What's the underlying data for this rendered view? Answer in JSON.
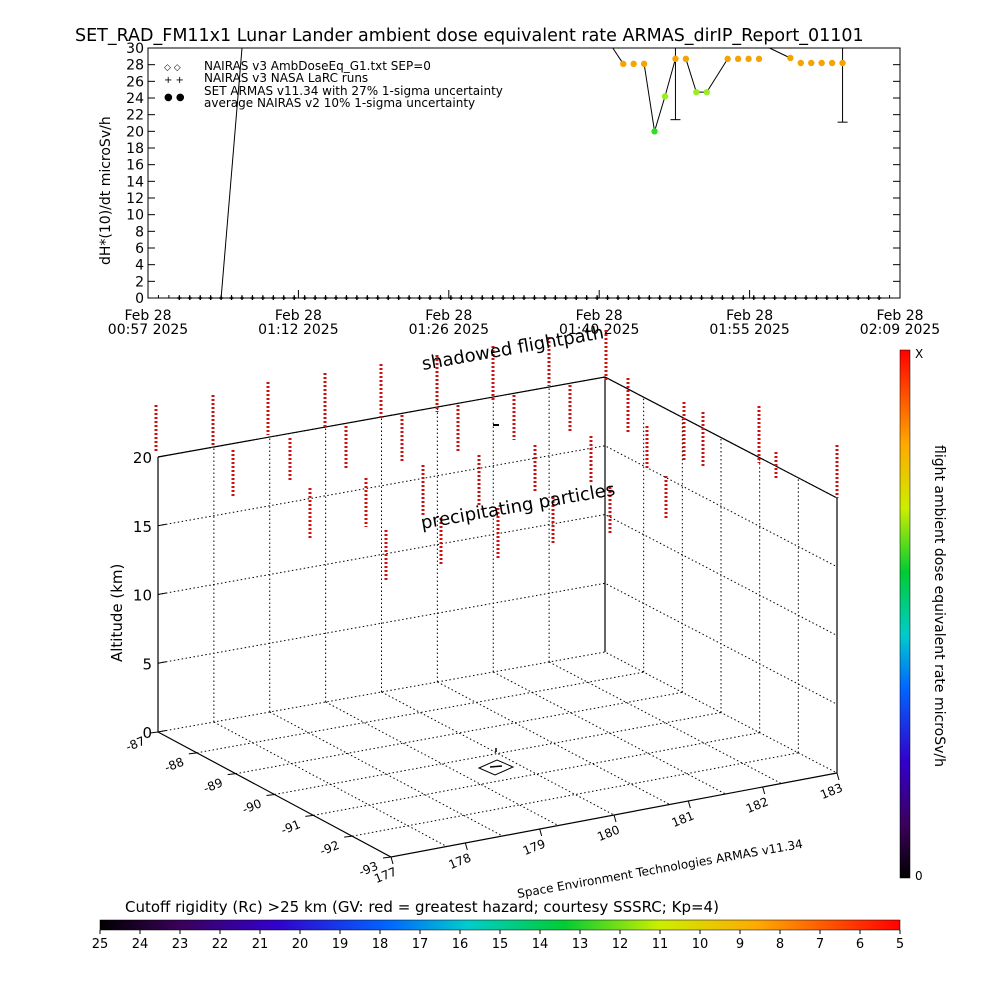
{
  "title": "SET_RAD_FM11x1  Lunar Lander ambient dose equivalent rate ARMAS_dirIP_Report_01101",
  "chart_data": [
    {
      "type": "scatter",
      "ylabel": "dH*(10)/dt microSv/h",
      "ylim": [
        0,
        30
      ],
      "yticks": [
        0,
        2,
        4,
        6,
        8,
        10,
        12,
        14,
        16,
        18,
        20,
        22,
        24,
        26,
        28,
        30
      ],
      "xtick_labels": [
        {
          "line1": "Feb 28",
          "line2": "00:57 2025"
        },
        {
          "line1": "Feb 28",
          "line2": "01:12 2025"
        },
        {
          "line1": "Feb 28",
          "line2": "01:26 2025"
        },
        {
          "line1": "Feb 28",
          "line2": "01:40 2025"
        },
        {
          "line1": "Feb 28",
          "line2": "01:55 2025"
        },
        {
          "line1": "Feb 28",
          "line2": "02:09 2025"
        }
      ],
      "xrange_minutes": [
        0,
        72
      ],
      "legend": [
        {
          "marker": "◇ ◇",
          "label": "NAIRAS v3 AmbDoseEq_G1.txt SEP=0"
        },
        {
          "marker": "+ +",
          "label": "NAIRAS v3 NASA LaRC runs"
        },
        {
          "marker": "● ●",
          "label": "SET ARMAS v11.34 with 27% 1-sigma uncertainty",
          "color": "#0033cc"
        },
        {
          "marker": "",
          "label": "average NAIRAS v2 10% 1-sigma uncertainty"
        }
      ],
      "series": [
        {
          "marker": "orange",
          "t_minutes": [
            45.5,
            46.5,
            47.5,
            50.5,
            51.5,
            55.5,
            56.5,
            57.5,
            58.5,
            61.5,
            62.5,
            63.5,
            64.5,
            65.5,
            66.5
          ],
          "values": [
            28.1,
            28.1,
            28.1,
            28.7,
            28.7,
            28.7,
            28.7,
            28.7,
            28.7,
            28.8,
            28.2,
            28.2,
            28.2,
            28.2,
            28.2
          ]
        },
        {
          "marker": "green",
          "t_minutes": [
            48.5
          ],
          "values": [
            20.0
          ]
        },
        {
          "marker": "light-green",
          "t_minutes": [
            49.5,
            52.5,
            53.5
          ],
          "values": [
            24.2,
            24.7,
            24.7
          ]
        },
        {
          "marker": "black-plus",
          "t_minutes": [
            3,
            4,
            5,
            6,
            7,
            8,
            9,
            10,
            11,
            12,
            13,
            14,
            15,
            16,
            17,
            18,
            19,
            20,
            21,
            22,
            23,
            24,
            25,
            26,
            27,
            28,
            29,
            30,
            31,
            32,
            33,
            34,
            35,
            36,
            37,
            38,
            39,
            40,
            41,
            42,
            43,
            44,
            45,
            46,
            47,
            48,
            49,
            50,
            51,
            52,
            53,
            54,
            55,
            56,
            57,
            58,
            59,
            60,
            61,
            62,
            63,
            64,
            65,
            66,
            67,
            68,
            69,
            70
          ],
          "values": [
            0,
            0,
            0,
            0,
            0,
            0,
            0,
            0,
            0,
            0,
            0,
            0,
            0,
            0,
            0,
            0,
            0,
            0,
            0,
            0,
            0,
            0,
            0,
            0,
            0,
            0,
            0,
            0,
            0,
            0,
            0,
            0,
            0,
            0,
            0,
            0,
            0,
            0,
            0,
            0,
            0,
            0,
            0,
            0,
            0,
            0,
            0,
            0,
            0,
            0,
            0,
            0,
            0,
            0,
            0,
            0,
            0,
            0,
            0,
            0,
            0,
            0,
            0,
            0,
            0,
            0,
            0,
            0
          ]
        }
      ],
      "error_bars": [
        {
          "t_minutes": 50.5,
          "low": 21.4,
          "high": 30
        },
        {
          "t_minutes": 66.5,
          "low": 21.1,
          "high": 30
        }
      ]
    },
    {
      "type": "scatter3d",
      "annotation_top": "shadowed flightpath",
      "annotation_mid": "precipitating particles",
      "zlabel": "Altitude (km)",
      "zlim": [
        0,
        20
      ],
      "zticks": [
        0,
        5,
        10,
        15,
        20
      ],
      "lat_ticks": [
        "-87",
        "-88",
        "-89",
        "-90",
        "-91",
        "-92",
        "-93"
      ],
      "lon_ticks": [
        "177",
        "178",
        "179",
        "180",
        "181",
        "182",
        "183"
      ],
      "colorbar_label": "flight ambient dose equivalent rate microSv/h",
      "colorbar_top": "X",
      "colorbar_bottom": "0",
      "credit": "Space Environment Technologies ARMAS v11.34",
      "cutoff_label": "Cutoff rigidity (Rc) >25 km (GV: red = greatest hazard; courtesy SSSRC; Kp=4)",
      "cutoff_ticks": [
        "25",
        "24",
        "23",
        "22",
        "21",
        "20",
        "19",
        "18",
        "17",
        "16",
        "15",
        "14",
        "13",
        "12",
        "11",
        "10",
        "9",
        "8",
        "7",
        "6",
        "5"
      ],
      "particle_color": "#cc1111"
    }
  ]
}
